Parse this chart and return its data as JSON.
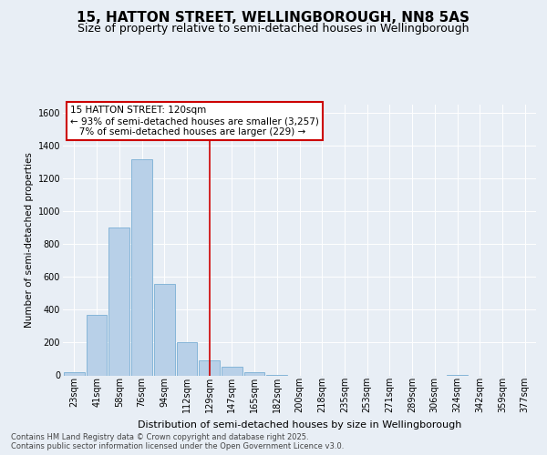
{
  "title": "15, HATTON STREET, WELLINGBOROUGH, NN8 5AS",
  "subtitle": "Size of property relative to semi-detached houses in Wellingborough",
  "xlabel": "Distribution of semi-detached houses by size in Wellingborough",
  "ylabel": "Number of semi-detached properties",
  "footnote": "Contains HM Land Registry data © Crown copyright and database right 2025.\nContains public sector information licensed under the Open Government Licence v3.0.",
  "bins": [
    "23sqm",
    "41sqm",
    "58sqm",
    "76sqm",
    "94sqm",
    "112sqm",
    "129sqm",
    "147sqm",
    "165sqm",
    "182sqm",
    "200sqm",
    "218sqm",
    "235sqm",
    "253sqm",
    "271sqm",
    "289sqm",
    "306sqm",
    "324sqm",
    "342sqm",
    "359sqm",
    "377sqm"
  ],
  "values": [
    20,
    370,
    900,
    1320,
    560,
    200,
    90,
    55,
    20,
    5,
    0,
    0,
    0,
    0,
    0,
    0,
    0,
    5,
    0,
    0,
    0
  ],
  "bar_color": "#b8d0e8",
  "bar_edge_color": "#7aafd4",
  "vline_x": 6.0,
  "property_label": "15 HATTON STREET: 120sqm",
  "smaller_pct": "93%",
  "smaller_count": "3,257",
  "larger_pct": "7%",
  "larger_count": "229",
  "vline_color": "#cc0000",
  "annotation_box_edge_color": "#cc0000",
  "ylim": [
    0,
    1650
  ],
  "yticks": [
    0,
    200,
    400,
    600,
    800,
    1000,
    1200,
    1400,
    1600
  ],
  "bg_color": "#e8eef5",
  "plot_bg_color": "#e8eef5",
  "grid_color": "#ffffff",
  "title_fontsize": 11,
  "subtitle_fontsize": 9,
  "tick_fontsize": 7,
  "ylabel_fontsize": 7.5,
  "xlabel_fontsize": 8,
  "ann_fontsize": 7.5,
  "footnote_fontsize": 6
}
